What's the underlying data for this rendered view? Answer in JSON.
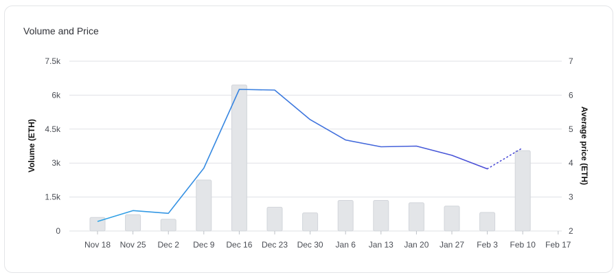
{
  "chart_data": {
    "type": "bar",
    "title": "Volume and Price",
    "categories": [
      "Nov 18",
      "Nov 25",
      "Dec 2",
      "Dec 9",
      "Dec 16",
      "Dec 23",
      "Dec 30",
      "Jan 6",
      "Jan 13",
      "Jan 20",
      "Jan 27",
      "Feb 3",
      "Feb 10",
      "Feb 17"
    ],
    "y_left": {
      "label": "Volume (ETH)",
      "ticks": [
        "0",
        "1.5k",
        "3k",
        "4.5k",
        "6k",
        "7.5k"
      ],
      "range": [
        0,
        7500
      ]
    },
    "y_right": {
      "label": "Average price (ETH)",
      "ticks": [
        "2",
        "3",
        "4",
        "5",
        "6",
        "7"
      ],
      "range": [
        2,
        7
      ]
    },
    "series": [
      {
        "type": "bar",
        "values": [
          600,
          720,
          520,
          2250,
          6450,
          1050,
          800,
          1350,
          1350,
          1250,
          1100,
          820,
          3550,
          null
        ]
      },
      {
        "type": "line",
        "values": [
          2.28,
          2.6,
          2.52,
          3.85,
          6.17,
          6.15,
          5.28,
          4.68,
          4.48,
          4.5,
          4.23,
          3.83,
          4.45,
          null
        ],
        "dotted_from_index": 11
      }
    ],
    "grid": true,
    "colors": {
      "bar_fill": "#e3e5e8",
      "bar_stroke": "#d2d5da",
      "line_start": "#2fa4e6",
      "line_end": "#4b4cd6",
      "grid": "#dfe1e5"
    }
  }
}
